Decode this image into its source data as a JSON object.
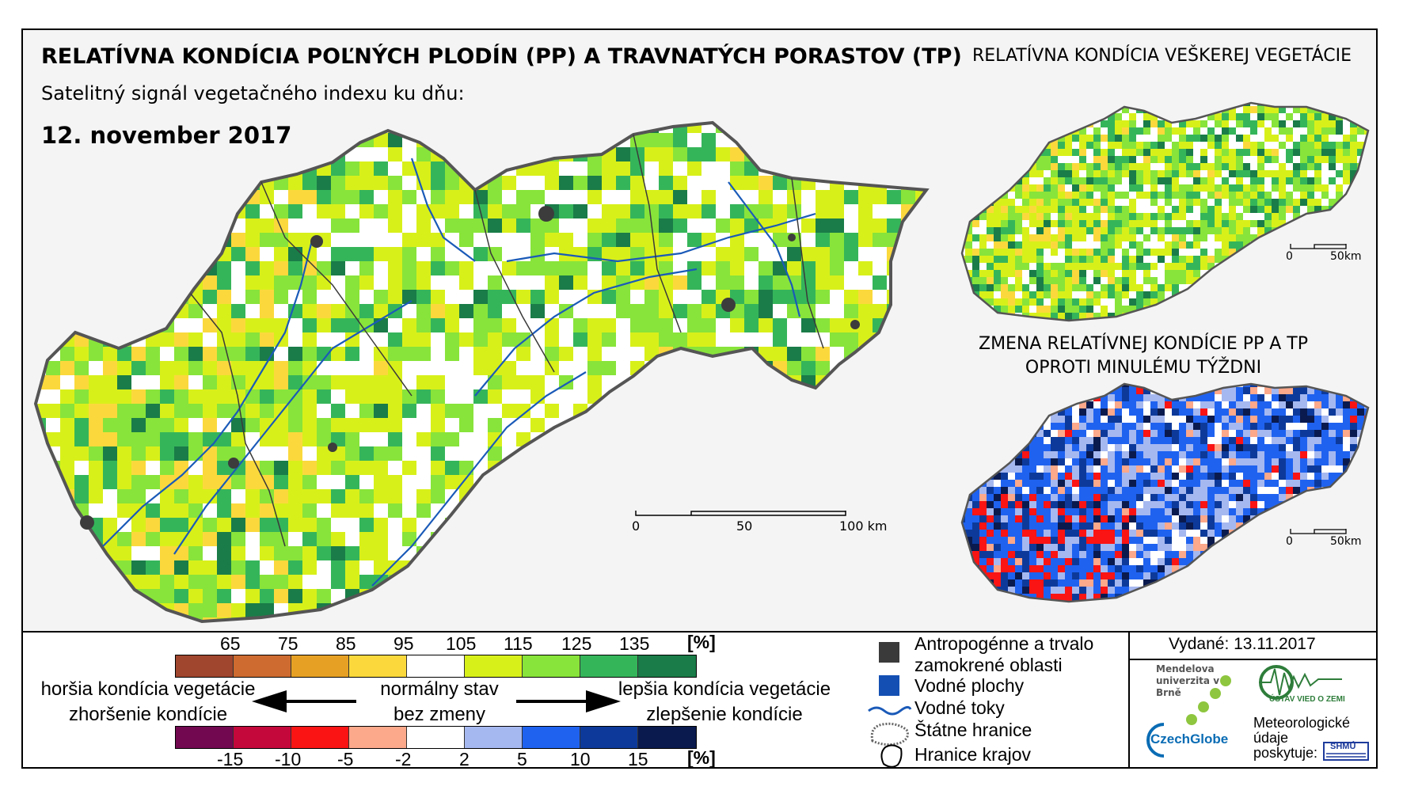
{
  "title": "RELATÍVNA KONDÍCIA POĽNÝCH PLODÍN (PP) A TRAVNATÝCH PORASTOV (TP)",
  "subtitle": "Satelitný signál vegetačného indexu ku dňu:",
  "date": "12. november 2017",
  "right_map_title": "RELATÍVNA KONDÍCIA VEŠKEREJ VEGETÁCIE",
  "change_map_title_line1": "ZMENA RELATÍVNEJ KONDÍCIE PP A TP",
  "change_map_title_line2": "OPROTI MINULÉMU TÝŽDNI",
  "main_scale": {
    "labels": [
      "0",
      "50",
      "100 km"
    ]
  },
  "small_scale": {
    "labels": [
      "0",
      "50km"
    ]
  },
  "condition_legend": {
    "unit": "[%]",
    "ticks": [
      "65",
      "75",
      "85",
      "95",
      "105",
      "115",
      "125",
      "135"
    ],
    "colors": [
      "#a0452e",
      "#cd6b30",
      "#e6a124",
      "#fbd93c",
      "#ffffff",
      "#d8f01a",
      "#88e43a",
      "#35b55a",
      "#1a7c48"
    ]
  },
  "change_legend": {
    "unit": "[%]",
    "ticks": [
      "-15",
      "-10",
      "-5",
      "-2",
      "2",
      "5",
      "10",
      "15"
    ],
    "colors": [
      "#72084f",
      "#c4083c",
      "#fa1414",
      "#fca88a",
      "#ffffff",
      "#a6b8f0",
      "#1f62f0",
      "#0d3a9a",
      "#0a1a4e"
    ]
  },
  "scale_text": {
    "worse_line1": "horšia kondícia vegetácie",
    "worse_line2": "zhoršenie kondície",
    "normal_line1": "normálny stav",
    "normal_line2": "bez zmeny",
    "better_line1": "lepšia kondícia vegetácie",
    "better_line2": "zlepšenie kondície"
  },
  "symbols": {
    "anthropogenic_line1": "Antropogénne a trvalo",
    "anthropogenic_line2": "zamokrené oblasti",
    "water_areas": "Vodné plochy",
    "water_streams": "Vodné toky",
    "state_borders": "Štátne hranice",
    "region_borders": "Hranice krajov",
    "colors": {
      "anthropogenic": "#3a3a3a",
      "water": "#1450b4",
      "stream": "#1a5ab8"
    }
  },
  "issued": "Vydané: 13.11.2017",
  "logos": {
    "mendel": "Mendelova univerzita v Brně",
    "czechglobe": "CzechGlobe",
    "uvgz": "ÚSTAV VIED O ZEMI",
    "meteo_line1": "Meteorologické",
    "meteo_line2": "údaje",
    "meteo_line3": "poskytuje:",
    "shmu": "SHMÚ"
  }
}
